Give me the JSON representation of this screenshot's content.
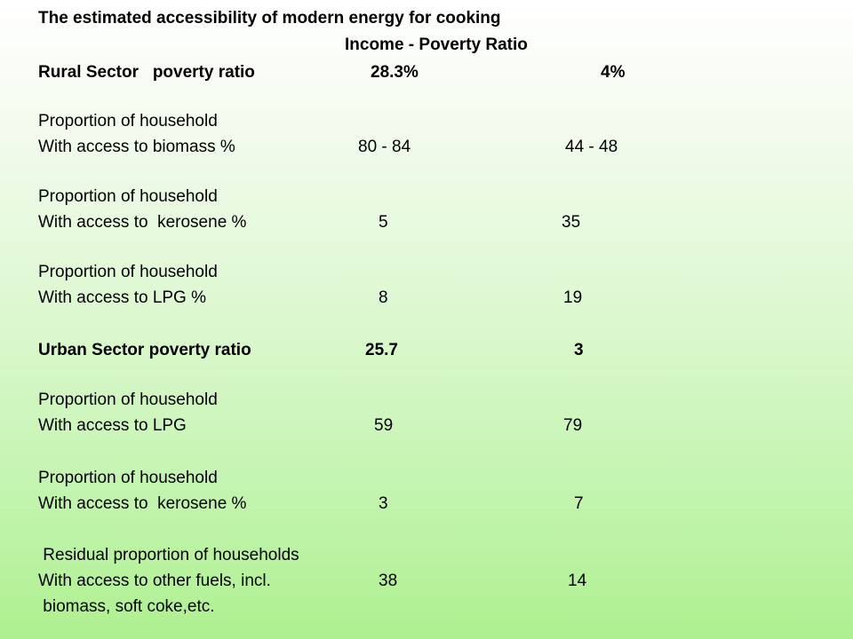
{
  "title": "The estimated accessibility of modern energy for cooking",
  "subtitle": "Income - Poverty Ratio",
  "rural": {
    "label": "Rural Sector   poverty ratio",
    "col1": "28.3%",
    "col2": "4%"
  },
  "rows": [
    {
      "line1": "Proportion of household",
      "line2": "With access to biomass %",
      "col1": "80 - 84",
      "col2": "44 - 48"
    },
    {
      "line1": "Proportion of household",
      "line2": "With access to  kerosene %",
      "col1": "5",
      "col2": "35"
    },
    {
      "line1": "Proportion of household",
      "line2": "With access to LPG %",
      "col1": "8",
      "col2": "19"
    }
  ],
  "urban": {
    "label": "Urban Sector poverty ratio",
    "col1": "25.7",
    "col2": "3"
  },
  "urban_rows": [
    {
      "line1": "Proportion of household",
      "line2": "With access to LPG",
      "col1": "59",
      "col2": "79"
    },
    {
      "line1": "Proportion of household",
      "line2": "With access to  kerosene %",
      "col1": "3",
      "col2": "7"
    }
  ],
  "residual": {
    "line1": " Residual proportion of households",
    "line2": "With access to other fuels, incl.",
    "line3": " biomass, soft coke,etc.",
    "col1": "38",
    "col2": "14"
  }
}
